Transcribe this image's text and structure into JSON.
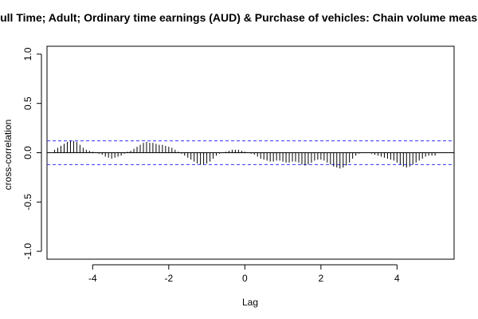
{
  "chart_data": {
    "type": "bar",
    "title": "Persons; Full Time; Adult; Ordinary time earnings (AUD) & Purchase of vehicles: Chain volume measures (AUD)",
    "xlabel": "Lag",
    "ylabel": "cross-correlation",
    "xlim": [
      -5.2,
      5.5
    ],
    "ylim": [
      -1.08,
      1.08
    ],
    "x_ticks": [
      -4,
      -2,
      0,
      2,
      4
    ],
    "x_tick_labels": [
      "-4",
      "-2",
      "0",
      "2",
      "4"
    ],
    "y_ticks": [
      -1.0,
      -0.5,
      0.0,
      0.5,
      1.0
    ],
    "y_tick_labels": [
      "-1.0",
      "-0.5",
      "0.0",
      "0.5",
      "1.0"
    ],
    "confidence_limits": [
      0.12,
      -0.12
    ],
    "zero_line": 0,
    "lag_step": 0.0833333,
    "lags": [
      -5.0,
      -4.9167,
      -4.8333,
      -4.75,
      -4.6667,
      -4.5833,
      -4.5,
      -4.4167,
      -4.3333,
      -4.25,
      -4.1667,
      -4.0833,
      -4.0,
      -3.9167,
      -3.8333,
      -3.75,
      -3.6667,
      -3.5833,
      -3.5,
      -3.4167,
      -3.3333,
      -3.25,
      -3.1667,
      -3.0833,
      -3.0,
      -2.9167,
      -2.8333,
      -2.75,
      -2.6667,
      -2.5833,
      -2.5,
      -2.4167,
      -2.3333,
      -2.25,
      -2.1667,
      -2.0833,
      -2.0,
      -1.9167,
      -1.8333,
      -1.75,
      -1.6667,
      -1.5833,
      -1.5,
      -1.4167,
      -1.3333,
      -1.25,
      -1.1667,
      -1.0833,
      -1.0,
      -0.9167,
      -0.8333,
      -0.75,
      -0.6667,
      -0.5833,
      -0.5,
      -0.4167,
      -0.3333,
      -0.25,
      -0.1667,
      -0.0833,
      0.0,
      0.0833,
      0.1667,
      0.25,
      0.3333,
      0.4167,
      0.5,
      0.5833,
      0.6667,
      0.75,
      0.8333,
      0.9167,
      1.0,
      1.0833,
      1.1667,
      1.25,
      1.3333,
      1.4167,
      1.5,
      1.5833,
      1.6667,
      1.75,
      1.8333,
      1.9167,
      2.0,
      2.0833,
      2.1667,
      2.25,
      2.3333,
      2.4167,
      2.5,
      2.5833,
      2.6667,
      2.75,
      2.8333,
      2.9167,
      3.0,
      3.0833,
      3.1667,
      3.25,
      3.3333,
      3.4167,
      3.5,
      3.5833,
      3.6667,
      3.75,
      3.8333,
      3.9167,
      4.0,
      4.0833,
      4.1667,
      4.25,
      4.3333,
      4.4167,
      4.5,
      4.5833,
      4.6667,
      4.75,
      4.8333,
      4.9167,
      5.0
    ],
    "values": [
      0.03,
      0.05,
      0.07,
      0.09,
      0.11,
      0.12,
      0.12,
      0.11,
      0.08,
      0.05,
      0.03,
      0.02,
      0.01,
      0.0,
      -0.01,
      -0.02,
      -0.04,
      -0.05,
      -0.06,
      -0.05,
      -0.04,
      -0.03,
      -0.01,
      0.01,
      0.02,
      0.04,
      0.06,
      0.08,
      0.1,
      0.11,
      0.1,
      0.1,
      0.09,
      0.08,
      0.08,
      0.07,
      0.06,
      0.05,
      0.03,
      0.01,
      -0.01,
      -0.03,
      -0.05,
      -0.07,
      -0.09,
      -0.11,
      -0.12,
      -0.12,
      -0.11,
      -0.09,
      -0.06,
      -0.03,
      -0.01,
      0.0,
      0.01,
      0.02,
      0.03,
      0.03,
      0.03,
      0.02,
      0.01,
      0.0,
      -0.01,
      -0.02,
      -0.04,
      -0.06,
      -0.07,
      -0.08,
      -0.09,
      -0.09,
      -0.08,
      -0.08,
      -0.09,
      -0.1,
      -0.1,
      -0.09,
      -0.09,
      -0.1,
      -0.12,
      -0.13,
      -0.12,
      -0.1,
      -0.08,
      -0.07,
      -0.07,
      -0.08,
      -0.1,
      -0.12,
      -0.14,
      -0.15,
      -0.16,
      -0.15,
      -0.13,
      -0.1,
      -0.06,
      -0.03,
      -0.01,
      0.0,
      0.0,
      0.0,
      -0.01,
      -0.02,
      -0.03,
      -0.04,
      -0.05,
      -0.06,
      -0.07,
      -0.08,
      -0.1,
      -0.12,
      -0.14,
      -0.15,
      -0.14,
      -0.12,
      -0.1,
      -0.08,
      -0.06,
      -0.04,
      -0.03,
      -0.03,
      -0.03
    ]
  },
  "colors": {
    "spike": "#000000",
    "confidence_line": "#3333ff",
    "frame": "#000000"
  }
}
